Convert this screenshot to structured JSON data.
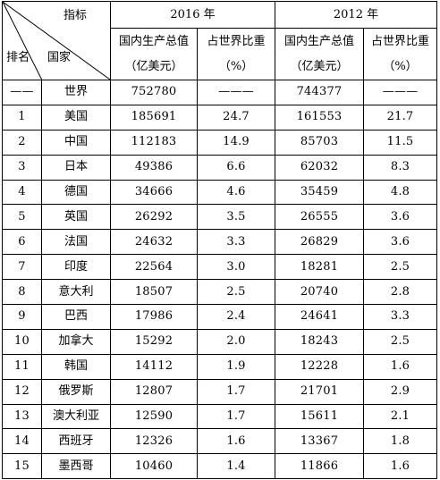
{
  "header": {
    "indicator": "指标",
    "rank": "排名",
    "country": "国家",
    "year1": "2016 年",
    "year2": "2012 年",
    "gdp_line1": "国内生产总值",
    "gdp_line2": "（亿美元）",
    "share_line1": "占世界比重",
    "share_line2": "（%）"
  },
  "rows": [
    {
      "rank": "——",
      "country": "世界",
      "gdp2016": "752780",
      "share2016": "———",
      "gdp2012": "744377",
      "share2012": "———"
    },
    {
      "rank": "1",
      "country": "美国",
      "gdp2016": "185691",
      "share2016": "24.7",
      "gdp2012": "161553",
      "share2012": "21.7"
    },
    {
      "rank": "2",
      "country": "中国",
      "gdp2016": "112183",
      "share2016": "14.9",
      "gdp2012": "85703",
      "share2012": "11.5"
    },
    {
      "rank": "3",
      "country": "日本",
      "gdp2016": "49386",
      "share2016": "6.6",
      "gdp2012": "62032",
      "share2012": "8.3"
    },
    {
      "rank": "4",
      "country": "德国",
      "gdp2016": "34666",
      "share2016": "4.6",
      "gdp2012": "35459",
      "share2012": "4.8"
    },
    {
      "rank": "5",
      "country": "英国",
      "gdp2016": "26292",
      "share2016": "3.5",
      "gdp2012": "26555",
      "share2012": "3.6"
    },
    {
      "rank": "6",
      "country": "法国",
      "gdp2016": "24632",
      "share2016": "3.3",
      "gdp2012": "26829",
      "share2012": "3.6"
    },
    {
      "rank": "7",
      "country": "印度",
      "gdp2016": "22564",
      "share2016": "3.0",
      "gdp2012": "18281",
      "share2012": "2.5"
    },
    {
      "rank": "8",
      "country": "意大利",
      "gdp2016": "18507",
      "share2016": "2.5",
      "gdp2012": "20740",
      "share2012": "2.8"
    },
    {
      "rank": "9",
      "country": "巴西",
      "gdp2016": "17986",
      "share2016": "2.4",
      "gdp2012": "24641",
      "share2012": "3.3"
    },
    {
      "rank": "10",
      "country": "加拿大",
      "gdp2016": "15292",
      "share2016": "2.0",
      "gdp2012": "18243",
      "share2012": "2.5"
    },
    {
      "rank": "11",
      "country": "韩国",
      "gdp2016": "14112",
      "share2016": "1.9",
      "gdp2012": "12228",
      "share2012": "1.6"
    },
    {
      "rank": "12",
      "country": "俄罗斯",
      "gdp2016": "12807",
      "share2016": "1.7",
      "gdp2012": "21701",
      "share2012": "2.9"
    },
    {
      "rank": "13",
      "country": "澳大利亚",
      "gdp2016": "12590",
      "share2016": "1.7",
      "gdp2012": "15611",
      "share2012": "2.1"
    },
    {
      "rank": "14",
      "country": "西班牙",
      "gdp2016": "12326",
      "share2016": "1.6",
      "gdp2012": "13367",
      "share2012": "1.8"
    },
    {
      "rank": "15",
      "country": "墨西哥",
      "gdp2016": "10460",
      "share2016": "1.4",
      "gdp2012": "11866",
      "share2012": "1.6"
    }
  ]
}
